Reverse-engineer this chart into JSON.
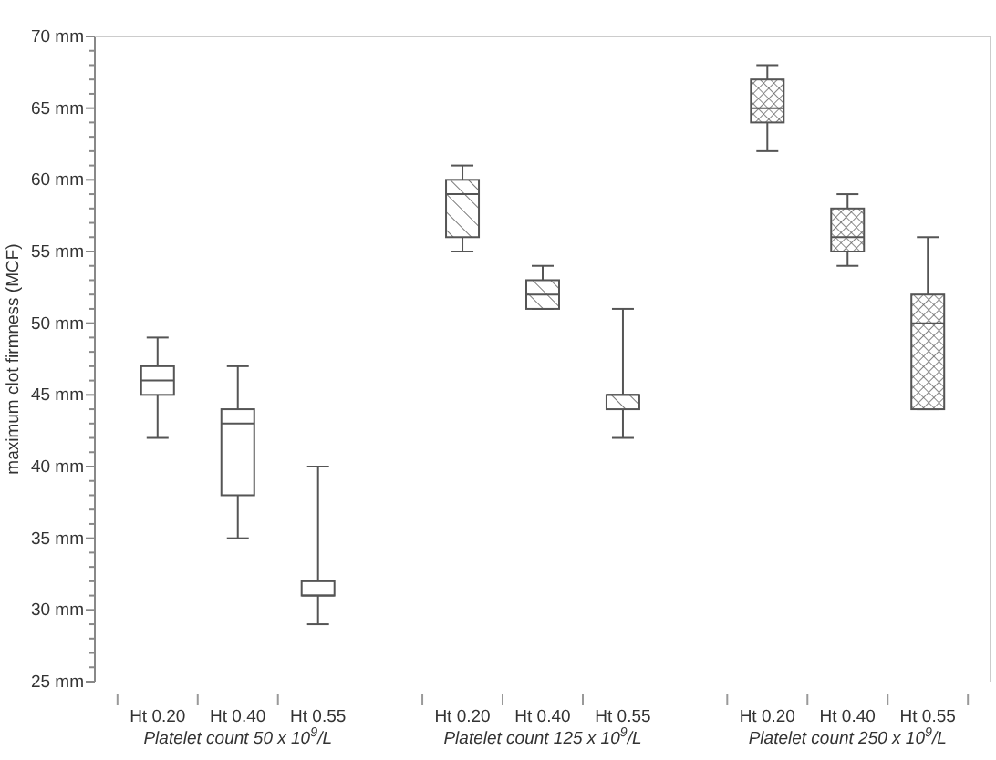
{
  "chart_data": {
    "type": "box",
    "ylabel": "maximum clot firmness (MCF)",
    "categories": [
      "Ht 0.20",
      "Ht 0.40",
      "Ht 0.55",
      "Ht 0.20",
      "Ht 0.40",
      "Ht 0.55",
      "Ht 0.20",
      "Ht 0.40",
      "Ht 0.55"
    ],
    "annotations": [
      "Platelet count 50 x 10$^{9}$/L",
      "Platelet count 125 x 10$^{9}$/L",
      "Platelet count 250 x 10$^{9}$/L"
    ],
    "series": [
      {
        "color": "#555555",
        "boxes": [
          {
            "low": 42,
            "q1": 45,
            "median": 46,
            "q3": 47,
            "high": 49
          },
          {
            "low": 35,
            "q1": 38,
            "median": 43,
            "q3": 44,
            "high": 47
          },
          {
            "low": 29,
            "q1": 31,
            "median": 31,
            "q3": 32,
            "high": 40
          },
          null,
          null,
          null,
          null,
          null,
          null
        ]
      },
      {
        "color": "#555555",
        "boxes": [
          null,
          null,
          null,
          {
            "low": 55,
            "q1": 56,
            "median": 59,
            "q3": 60,
            "high": 61
          },
          {
            "low": 51,
            "q1": 51,
            "median": 52,
            "q3": 53,
            "high": 54
          },
          {
            "low": 42,
            "q1": 44,
            "median": 45,
            "q3": 45,
            "high": 51
          },
          null,
          null,
          null
        ]
      },
      {
        "color": "#555555",
        "boxes": [
          null,
          null,
          null,
          null,
          null,
          null,
          {
            "low": 62,
            "q1": 64,
            "median": 65,
            "q3": 67,
            "high": 68
          },
          {
            "low": 54,
            "q1": 55,
            "median": 56,
            "q3": 58,
            "high": 59
          },
          {
            "low": 44,
            "q1": 44,
            "median": 50,
            "q3": 52,
            "high": 56
          }
        ]
      }
    ],
    "ylim": [
      25,
      70
    ],
    "yticks": [
      {
        "value": 25,
        "label": "25 mm"
      },
      {
        "value": 26,
        "label": null
      },
      {
        "value": 27,
        "label": null
      },
      {
        "value": 28,
        "label": null
      },
      {
        "value": 29,
        "label": null
      },
      {
        "value": 30,
        "label": "30 mm"
      },
      {
        "value": 31,
        "label": null
      },
      {
        "value": 32,
        "label": null
      },
      {
        "value": 33,
        "label": null
      },
      {
        "value": 34,
        "label": null
      },
      {
        "value": 35,
        "label": "35 mm"
      },
      {
        "value": 36,
        "label": null
      },
      {
        "value": 37,
        "label": null
      },
      {
        "value": 38,
        "label": null
      },
      {
        "value": 39,
        "label": null
      },
      {
        "value": 40,
        "label": "40 mm"
      },
      {
        "value": 41,
        "label": null
      },
      {
        "value": 42,
        "label": null
      },
      {
        "value": 43,
        "label": null
      },
      {
        "value": 44,
        "label": null
      },
      {
        "value": 45,
        "label": "45 mm"
      },
      {
        "value": 46,
        "label": null
      },
      {
        "value": 47,
        "label": null
      },
      {
        "value": 48,
        "label": null
      },
      {
        "value": 49,
        "label": null
      },
      {
        "value": 50,
        "label": "50 mm"
      },
      {
        "value": 51,
        "label": null
      },
      {
        "value": 52,
        "label": null
      },
      {
        "value": 53,
        "label": null
      },
      {
        "value": 54,
        "label": null
      },
      {
        "value": 55,
        "label": "55 mm"
      },
      {
        "value": 56,
        "label": null
      },
      {
        "value": 57,
        "label": null
      },
      {
        "value": 58,
        "label": null
      },
      {
        "value": 59,
        "label": null
      },
      {
        "value": 60,
        "label": "60 mm"
      },
      {
        "value": 61,
        "label": null
      },
      {
        "value": 62,
        "label": null
      },
      {
        "value": 63,
        "label": null
      },
      {
        "value": 64,
        "label": null
      },
      {
        "value": 65,
        "label": "65 mm"
      },
      {
        "value": 66,
        "label": null
      },
      {
        "value": 67,
        "label": null
      },
      {
        "value": 68,
        "label": null
      },
      {
        "value": 69,
        "label": null
      },
      {
        "value": 70,
        "label": "70 mm"
      }
    ],
    "grid": false
  }
}
